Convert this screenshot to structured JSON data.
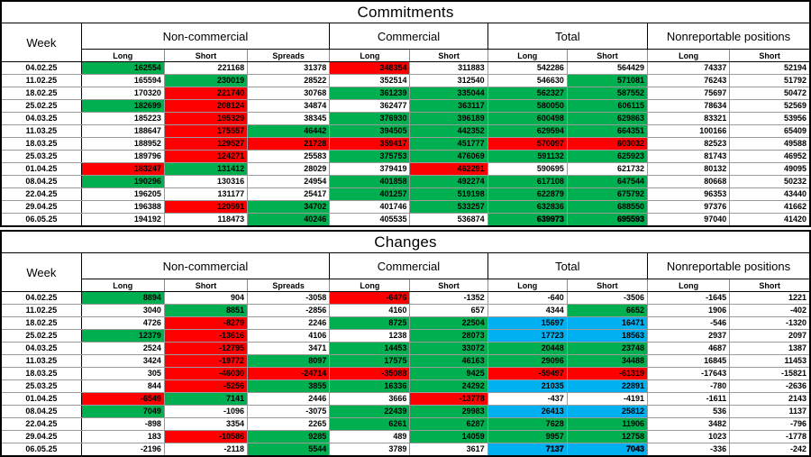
{
  "report": {
    "section1_title": "Commitments",
    "section2_title": "Changes"
  },
  "columns": {
    "week": "Week",
    "groups": [
      {
        "label": "Non-commercial",
        "cols": [
          "Long",
          "Short",
          "Spreads"
        ]
      },
      {
        "label": "Commercial",
        "cols": [
          "Long",
          "Short"
        ]
      },
      {
        "label": "Total",
        "cols": [
          "Long",
          "Short"
        ]
      },
      {
        "label": "Nonreportable positions",
        "cols": [
          "Long",
          "Short"
        ]
      }
    ]
  },
  "colors": {
    "highlight_green": "#00B050",
    "highlight_red": "#FF0000",
    "highlight_blue": "#00B0F0",
    "border_black": "#000000",
    "grid_gray": "#9a9a9a"
  },
  "commitments": {
    "rows": [
      {
        "week": "04.02.25",
        "values": [
          162554,
          221168,
          31378,
          348354,
          311883,
          542286,
          564429,
          74337,
          52194
        ],
        "bg": [
          "g",
          "",
          "",
          "r",
          "",
          "",
          "",
          "",
          ""
        ]
      },
      {
        "week": "11.02.25",
        "values": [
          165594,
          230019,
          28522,
          352514,
          312540,
          546630,
          571081,
          76243,
          51792
        ],
        "bg": [
          "",
          "g",
          "",
          "",
          "",
          "",
          "g",
          "",
          ""
        ]
      },
      {
        "week": "18.02.25",
        "values": [
          170320,
          221740,
          30768,
          361239,
          335044,
          562327,
          587552,
          75697,
          50472
        ],
        "bg": [
          "",
          "r",
          "",
          "g",
          "g",
          "g",
          "g",
          "",
          ""
        ]
      },
      {
        "week": "25.02.25",
        "values": [
          182699,
          208124,
          34874,
          362477,
          363117,
          580050,
          606115,
          78634,
          52569
        ],
        "bg": [
          "g",
          "r",
          "",
          "",
          "g",
          "g",
          "g",
          "",
          ""
        ]
      },
      {
        "week": "04.03.25",
        "values": [
          185223,
          195329,
          38345,
          376930,
          396189,
          600498,
          629863,
          83321,
          53956
        ],
        "bg": [
          "",
          "r",
          "",
          "g",
          "g",
          "g",
          "g",
          "",
          ""
        ]
      },
      {
        "week": "11.03.25",
        "values": [
          188647,
          175557,
          46442,
          394505,
          442352,
          629594,
          664351,
          100166,
          65409
        ],
        "bg": [
          "",
          "r",
          "g",
          "g",
          "g",
          "g",
          "g",
          "",
          ""
        ]
      },
      {
        "week": "18.03.25",
        "values": [
          188952,
          129527,
          21728,
          359417,
          451777,
          570097,
          603032,
          82523,
          49588
        ],
        "bg": [
          "",
          "r",
          "r",
          "r",
          "g",
          "r",
          "r",
          "",
          ""
        ]
      },
      {
        "week": "25.03.25",
        "values": [
          189796,
          124271,
          25583,
          375753,
          476069,
          591132,
          625923,
          81743,
          46952
        ],
        "bg": [
          "",
          "r",
          "",
          "g",
          "g",
          "g",
          "g",
          "",
          ""
        ]
      },
      {
        "week": "01.04.25",
        "values": [
          183247,
          131412,
          28029,
          379419,
          462291,
          590695,
          621732,
          80132,
          49095
        ],
        "bg": [
          "r",
          "g",
          "",
          "",
          "r",
          "",
          "",
          "",
          ""
        ]
      },
      {
        "week": "08.04.25",
        "values": [
          190296,
          130316,
          24954,
          401858,
          492274,
          617108,
          647544,
          80668,
          50232
        ],
        "bg": [
          "g",
          "",
          "",
          "g",
          "g",
          "g",
          "g",
          "",
          ""
        ]
      },
      {
        "week": "22.04.25",
        "values": [
          196205,
          131177,
          25417,
          401257,
          519198,
          622879,
          675792,
          96353,
          43440
        ],
        "bg": [
          "",
          "",
          "",
          "g",
          "g",
          "g",
          "g",
          "",
          ""
        ]
      },
      {
        "week": "29.04.25",
        "values": [
          196388,
          120591,
          34702,
          401746,
          533257,
          632836,
          688550,
          97376,
          41662
        ],
        "bg": [
          "",
          "r",
          "g",
          "",
          "g",
          "g",
          "g",
          "",
          ""
        ]
      },
      {
        "week": "06.05.25",
        "values": [
          194192,
          118473,
          40246,
          405535,
          536874,
          639973,
          695593,
          97040,
          41420
        ],
        "bg": [
          "",
          "",
          "g",
          "",
          "",
          "g",
          "g",
          "",
          ""
        ],
        "bold": [
          5,
          6
        ]
      }
    ]
  },
  "changes": {
    "rows": [
      {
        "week": "04.02.25",
        "values": [
          8894,
          904,
          -3058,
          -6476,
          -1352,
          -640,
          -3506,
          -1645,
          1221
        ],
        "bg": [
          "g",
          "",
          "",
          "r",
          "",
          "",
          "",
          "",
          ""
        ]
      },
      {
        "week": "11.02.25",
        "values": [
          3040,
          8851,
          -2856,
          4160,
          657,
          4344,
          6652,
          1906,
          -402
        ],
        "bg": [
          "",
          "g",
          "",
          "",
          "",
          "",
          "g",
          "",
          ""
        ]
      },
      {
        "week": "18.02.25",
        "values": [
          4726,
          -8279,
          2246,
          8725,
          22504,
          15697,
          16471,
          -546,
          -1320
        ],
        "bg": [
          "",
          "r",
          "",
          "g",
          "g",
          "b",
          "b",
          "",
          ""
        ]
      },
      {
        "week": "25.02.25",
        "values": [
          12379,
          -13616,
          4106,
          1238,
          28073,
          17723,
          18563,
          2937,
          2097
        ],
        "bg": [
          "g",
          "r",
          "",
          "",
          "g",
          "b",
          "b",
          "",
          ""
        ]
      },
      {
        "week": "04.03.25",
        "values": [
          2524,
          -12795,
          3471,
          14453,
          33072,
          20448,
          23748,
          4687,
          1387
        ],
        "bg": [
          "",
          "r",
          "",
          "g",
          "g",
          "g",
          "g",
          "",
          ""
        ]
      },
      {
        "week": "11.03.25",
        "values": [
          3424,
          -19772,
          8097,
          17575,
          46163,
          29096,
          34488,
          16845,
          11453
        ],
        "bg": [
          "",
          "r",
          "g",
          "g",
          "g",
          "g",
          "g",
          "",
          ""
        ]
      },
      {
        "week": "18.03.25",
        "values": [
          305,
          -46030,
          -24714,
          -35088,
          9425,
          -59497,
          -61319,
          -17643,
          -15821
        ],
        "bg": [
          "",
          "r",
          "r",
          "r",
          "g",
          "r",
          "r",
          "",
          ""
        ]
      },
      {
        "week": "25.03.25",
        "values": [
          844,
          -5256,
          3855,
          16336,
          24292,
          21035,
          22891,
          -780,
          -2636
        ],
        "bg": [
          "",
          "r",
          "g",
          "g",
          "g",
          "b",
          "b",
          "",
          ""
        ]
      },
      {
        "week": "01.04.25",
        "values": [
          -6549,
          7141,
          2446,
          3666,
          -13778,
          -437,
          -4191,
          -1611,
          2143
        ],
        "bg": [
          "r",
          "g",
          "",
          "",
          "r",
          "",
          "",
          "",
          ""
        ]
      },
      {
        "week": "08.04.25",
        "values": [
          7049,
          -1096,
          -3075,
          22439,
          29983,
          26413,
          25812,
          536,
          1137
        ],
        "bg": [
          "g",
          "",
          "",
          "g",
          "g",
          "b",
          "b",
          "",
          ""
        ]
      },
      {
        "week": "22.04.25",
        "values": [
          -898,
          3354,
          2265,
          6261,
          6287,
          7628,
          11906,
          3482,
          -796
        ],
        "bg": [
          "",
          "",
          "",
          "g",
          "g",
          "g",
          "g",
          "",
          ""
        ]
      },
      {
        "week": "29.04.25",
        "values": [
          183,
          -10586,
          9285,
          489,
          14059,
          9957,
          12758,
          1023,
          -1778
        ],
        "bg": [
          "",
          "r",
          "g",
          "",
          "g",
          "g",
          "g",
          "",
          ""
        ]
      },
      {
        "week": "06.05.25",
        "values": [
          -2196,
          -2118,
          5544,
          3789,
          3617,
          7137,
          7043,
          -336,
          -242
        ],
        "bg": [
          "",
          "",
          "g",
          "",
          "",
          "b",
          "b",
          "",
          ""
        ],
        "bold": [
          5,
          6
        ]
      }
    ]
  }
}
